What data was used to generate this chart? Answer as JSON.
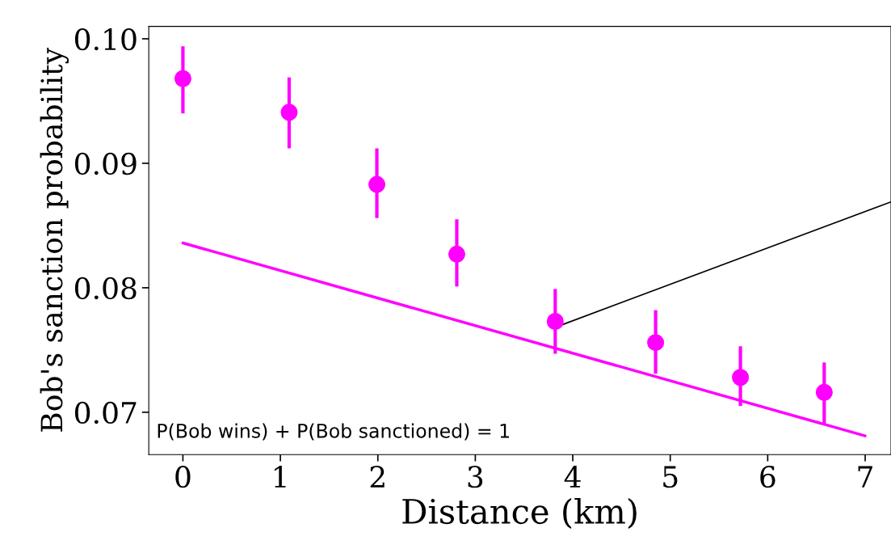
{
  "chart_data": {
    "type": "scatter",
    "xlabel": "Distance (km)",
    "ylabel": "Bob's sanction probability",
    "xlim": [
      -0.35,
      7.265
    ],
    "ylim": [
      0.0666,
      0.101
    ],
    "xticks": [
      0,
      1,
      2,
      3,
      4,
      5,
      6,
      7
    ],
    "yticks": [
      {
        "value": 0.07,
        "label": "0.07"
      },
      {
        "value": 0.08,
        "label": "0.08"
      },
      {
        "value": 0.09,
        "label": "0.09"
      },
      {
        "value": 0.1,
        "label": "0.10"
      }
    ],
    "grid": false,
    "series": [
      {
        "marker": "circle",
        "color": "#ff00ff",
        "x": [
          0,
          1.09,
          1.99,
          2.81,
          3.82,
          4.85,
          5.72,
          6.58
        ],
        "values": [
          0.0968,
          0.0941,
          0.0883,
          0.0827,
          0.0773,
          0.0756,
          0.0728,
          0.0716
        ],
        "errors": [
          [
            0.094,
            0.0994
          ],
          [
            0.0912,
            0.0969
          ],
          [
            0.0856,
            0.0912
          ],
          [
            0.0801,
            0.0855
          ],
          [
            0.0747,
            0.0799
          ],
          [
            0.0731,
            0.0782
          ],
          [
            0.0705,
            0.0753
          ],
          [
            0.0691,
            0.074
          ]
        ]
      },
      {
        "type": "line",
        "marker": "none",
        "color": "#ff00ff",
        "x": [
          0,
          7
        ],
        "values": [
          0.0836,
          0.0681
        ]
      },
      {
        "type": "line",
        "marker": "none",
        "color": "#000000",
        "x": [
          3.88,
          7.265
        ],
        "values": [
          0.077,
          0.0869
        ]
      }
    ],
    "annotations": [
      "P(Bob wins) + P(Bob sanctioned) = 1"
    ]
  }
}
